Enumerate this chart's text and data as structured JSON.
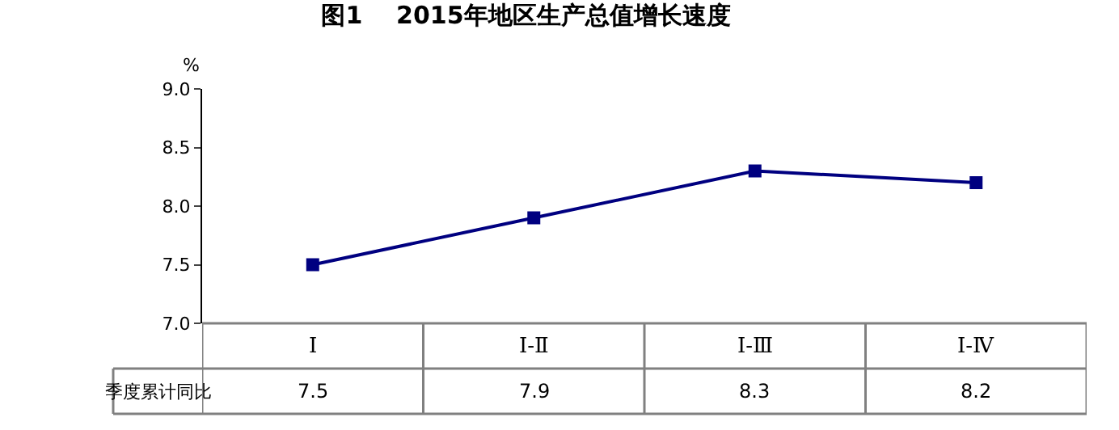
{
  "chart_data": {
    "type": "line",
    "title": "图1    2015年地区生产总值增长速度",
    "ylabel": "%",
    "categories": [
      "Ⅰ",
      "Ⅰ-Ⅱ",
      "Ⅰ-Ⅲ",
      "Ⅰ-Ⅳ"
    ],
    "series": [
      {
        "name": "季度累计同比",
        "color": "#000080",
        "values": [
          7.5,
          7.9,
          8.3,
          8.2
        ]
      }
    ],
    "ylim": [
      7.0,
      9.0
    ],
    "yticks": [
      {
        "value": 7.0,
        "label": "7.0"
      },
      {
        "value": 7.5,
        "label": "7.5"
      },
      {
        "value": 8.0,
        "label": "8.0"
      },
      {
        "value": 8.5,
        "label": "8.5"
      },
      {
        "value": 9.0,
        "label": "9.0"
      }
    ],
    "legend": false,
    "marker": "square",
    "line_style": "solid",
    "data_labels": true
  }
}
